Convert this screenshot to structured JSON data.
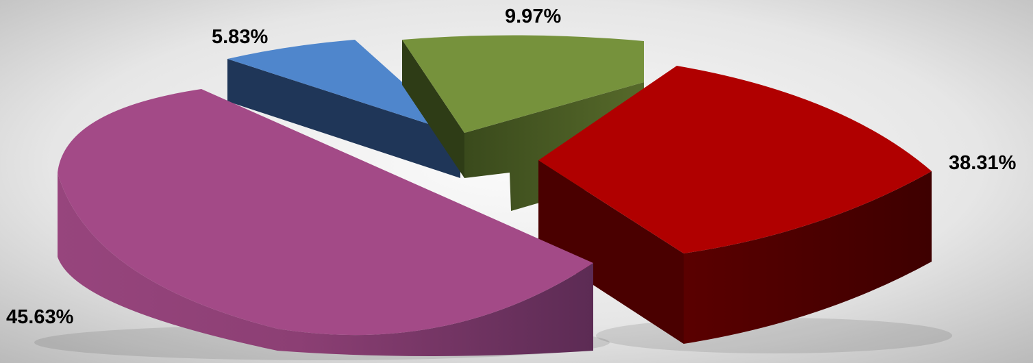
{
  "chart_data": {
    "type": "pie",
    "style": "3d-exploded",
    "title": "",
    "legend": "none",
    "slices": [
      {
        "label": "38.31%",
        "value": 38.31,
        "color": "#b00000"
      },
      {
        "label": "45.63%",
        "value": 45.63,
        "color": "#a34a87"
      },
      {
        "label": "5.83%",
        "value": 5.83,
        "color": "#4f86cc"
      },
      {
        "label": "9.97%",
        "value": 9.97,
        "color": "#76923c"
      }
    ]
  }
}
